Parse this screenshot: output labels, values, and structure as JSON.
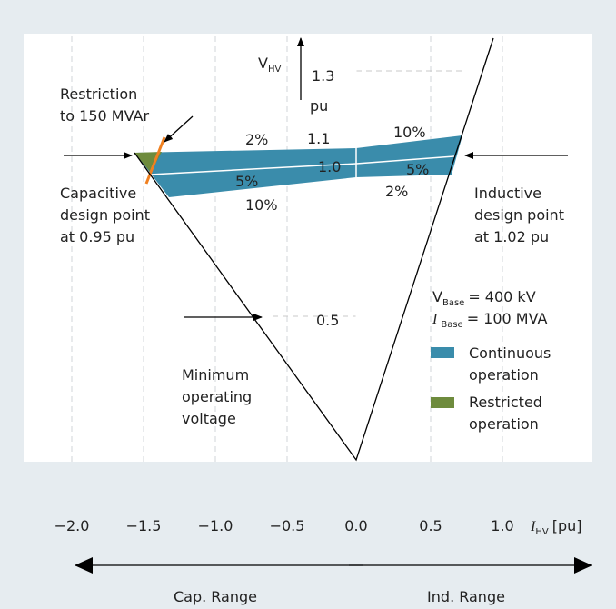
{
  "axis": {
    "y_label": {
      "symbol": "V",
      "sub": "HV"
    },
    "y_unit": "pu",
    "y_ticks": [
      "1.3",
      "1.1",
      "1.0",
      "0.5"
    ],
    "x_ticks": [
      "−2.0",
      "−1.5",
      "−1.0",
      "−0.5",
      "0.0",
      "0.5",
      "1.0"
    ],
    "x_label": {
      "symbol": "I",
      "sub": "HV",
      "unit": "[pu]"
    }
  },
  "band_labels": [
    "2%",
    "10%",
    "5%",
    "5%",
    "10%",
    "2%"
  ],
  "annotations": {
    "restriction": [
      "Restriction",
      "to 150 MVAr"
    ],
    "capacitive": [
      "Capacitive",
      "design point",
      "at 0.95 pu"
    ],
    "inductive": [
      "Inductive",
      "design point",
      "at 1.02 pu"
    ],
    "minimum": [
      "Minimum",
      "operating",
      "voltage"
    ]
  },
  "base": {
    "v": {
      "symbol": "V",
      "sub": "Base",
      "value": "= 400 kV"
    },
    "i": {
      "symbol": "I",
      "sub": "Base",
      "value": "= 100 MVA"
    }
  },
  "legend": [
    {
      "label": [
        "Continuous",
        "operation"
      ],
      "color": "#3a8cab"
    },
    {
      "label": [
        "Restricted",
        "operation"
      ],
      "color": "#6e8b3d"
    }
  ],
  "ranges": [
    "Cap. Range",
    "Ind. Range"
  ]
}
